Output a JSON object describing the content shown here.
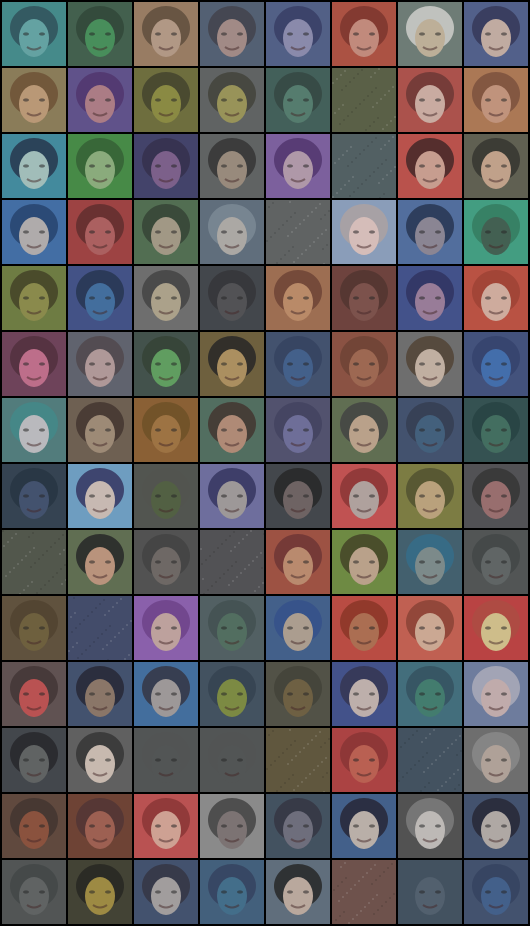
{
  "grid": {
    "rows": 14,
    "cols": 8,
    "tiles": [
      {
        "bg": "#3c8a8a",
        "face": "#5fa6a6",
        "hair": "#244a55",
        "noise": false
      },
      {
        "bg": "#3a5a46",
        "face": "#3f8f55",
        "hair": "#26402f",
        "noise": false
      },
      {
        "bg": "#9a7a5e",
        "face": "#b79a84",
        "hair": "#5a4634",
        "noise": false
      },
      {
        "bg": "#4c5a70",
        "face": "#a48a86",
        "hair": "#3a3a44",
        "noise": false
      },
      {
        "bg": "#4a5a86",
        "face": "#8a8ab0",
        "hair": "#2e3460",
        "noise": false
      },
      {
        "bg": "#b04a3a",
        "face": "#c98a7a",
        "hair": "#7a2a22",
        "noise": false
      },
      {
        "bg": "#6a7a74",
        "face": "#c4b49a",
        "hair": "#d8d8d4",
        "noise": false
      },
      {
        "bg": "#4a5a8a",
        "face": "#c8b0a4",
        "hair": "#2a2e52",
        "noise": false
      },
      {
        "bg": "#8a7a52",
        "face": "#c09a74",
        "hair": "#6a4a2a",
        "noise": false
      },
      {
        "bg": "#5a4a8a",
        "face": "#b07a84",
        "hair": "#4a2a6a",
        "noise": false
      },
      {
        "bg": "#6a6a34",
        "face": "#8a8a3a",
        "hair": "#3a3a22",
        "noise": false
      },
      {
        "bg": "#5a5e5e",
        "face": "#9a9452",
        "hair": "#3a3a30",
        "noise": false
      },
      {
        "bg": "#3a5a54",
        "face": "#4e7a6a",
        "hair": "#2a403a",
        "noise": false
      },
      {
        "bg": "#545a3e",
        "face": "#545a3e",
        "hair": "#545a3e",
        "noise": true
      },
      {
        "bg": "#b04a44",
        "face": "#d2b0a4",
        "hair": "#6a2e2a",
        "noise": false
      },
      {
        "bg": "#b0764e",
        "face": "#c8947a",
        "hair": "#7a4a34",
        "noise": false
      },
      {
        "bg": "#3a8aa0",
        "face": "#a4c4c0",
        "hair": "#1a2a44",
        "noise": false
      },
      {
        "bg": "#3e8a3e",
        "face": "#8ab07a",
        "hair": "#2a5a2a",
        "noise": false
      },
      {
        "bg": "#3a3a66",
        "face": "#7a5a8a",
        "hair": "#2a2444",
        "noise": false
      },
      {
        "bg": "#5a5e5e",
        "face": "#9a8a7a",
        "hair": "#2a2a2a",
        "noise": false
      },
      {
        "bg": "#7a5aa0",
        "face": "#b49aac",
        "hair": "#4a2a6a",
        "noise": false
      },
      {
        "bg": "#4a5a5e",
        "face": "#4a5a5e",
        "hair": "#4a5a5e",
        "noise": true
      },
      {
        "bg": "#c04a44",
        "face": "#d0a090",
        "hair": "#3a1a1a",
        "noise": false
      },
      {
        "bg": "#5a5a4a",
        "face": "#c8a48a",
        "hair": "#2a2a24",
        "noise": false
      },
      {
        "bg": "#3a6aa8",
        "face": "#b4b0b0",
        "hair": "#1a3a6a",
        "noise": false
      },
      {
        "bg": "#a03a3a",
        "face": "#b05a5a",
        "hair": "#5a2222",
        "noise": false
      },
      {
        "bg": "#4a6a4a",
        "face": "#a49a84",
        "hair": "#2a3a2a",
        "noise": false
      },
      {
        "bg": "#5a6a7a",
        "face": "#b0aca8",
        "hair": "#7a8a96",
        "noise": false
      },
      {
        "bg": "#5a5e5e",
        "face": "#5a5e5e",
        "hair": "#5a5e5e",
        "noise": true
      },
      {
        "bg": "#8aa0c0",
        "face": "#e0c4c0",
        "hair": "#b0a4a4",
        "noise": false
      },
      {
        "bg": "#4a6aa0",
        "face": "#8a8494",
        "hair": "#1a2a4a",
        "noise": false
      },
      {
        "bg": "#3aa080",
        "face": "#3a5a4a",
        "hair": "#2a7a5a",
        "noise": false
      },
      {
        "bg": "#6a7a3a",
        "face": "#8a8a44",
        "hair": "#3a3a1a",
        "noise": false
      },
      {
        "bg": "#3a4a86",
        "face": "#3a6aa0",
        "hair": "#1a2a4a",
        "noise": false
      },
      {
        "bg": "#6a6a6a",
        "face": "#b0a48a",
        "hair": "#3a3a3a",
        "noise": false
      },
      {
        "bg": "#3a3e44",
        "face": "#4a4a4e",
        "hair": "#2a2a2e",
        "noise": false
      },
      {
        "bg": "#a06a4a",
        "face": "#c08a64",
        "hair": "#6a3a2a",
        "noise": false
      },
      {
        "bg": "#6a3a34",
        "face": "#7a4a44",
        "hair": "#4a2a24",
        "noise": false
      },
      {
        "bg": "#3a4a8a",
        "face": "#9a7a9a",
        "hair": "#24285a",
        "noise": false
      },
      {
        "bg": "#c04a3a",
        "face": "#d8b0a0",
        "hair": "#a03a2a",
        "noise": false
      },
      {
        "bg": "#6a3a54",
        "face": "#c46a8a",
        "hair": "#4a2434",
        "noise": false
      },
      {
        "bg": "#5a5e6a",
        "face": "#b49a9a",
        "hair": "#4a4044",
        "noise": false
      },
      {
        "bg": "#3a4a44",
        "face": "#5aa05a",
        "hair": "#2a3a2a",
        "noise": false
      },
      {
        "bg": "#6a5a34",
        "face": "#b0905a",
        "hair": "#1a1a1a",
        "noise": false
      },
      {
        "bg": "#3a4a6a",
        "face": "#3a5a8a",
        "hair": "#2a3a5a",
        "noise": false
      },
      {
        "bg": "#8a4a3a",
        "face": "#a0644a",
        "hair": "#6a3a2a",
        "noise": false
      },
      {
        "bg": "#6a6a6a",
        "face": "#c8b4a4",
        "hair": "#4a3a2a",
        "noise": false
      },
      {
        "bg": "#3a4a7a",
        "face": "#3a6ab0",
        "hair": "#2a3a6a",
        "noise": false
      },
      {
        "bg": "#4a7a7a",
        "face": "#c0c0c4",
        "hair": "#3a8a8a",
        "noise": false
      },
      {
        "bg": "#6a5a4a",
        "face": "#a08a74",
        "hair": "#3a2a24",
        "noise": false
      },
      {
        "bg": "#8a5a2a",
        "face": "#a0703a",
        "hair": "#6a4a1a",
        "noise": false
      },
      {
        "bg": "#4a6a5a",
        "face": "#b48a74",
        "hair": "#3a2a24",
        "noise": false
      },
      {
        "bg": "#4a4a6a",
        "face": "#6a6a9a",
        "hair": "#3a3a5a",
        "noise": false
      },
      {
        "bg": "#5a6a4a",
        "face": "#c0a48a",
        "hair": "#3a3a3a",
        "noise": false
      },
      {
        "bg": "#3a4a6a",
        "face": "#3a5a7a",
        "hair": "#2a344a",
        "noise": false
      },
      {
        "bg": "#2a4a4a",
        "face": "#3a6a5a",
        "hair": "#1a3a3a",
        "noise": false
      },
      {
        "bg": "#2a3a4a",
        "face": "#3a4a6a",
        "hair": "#1a2a3a",
        "noise": false
      },
      {
        "bg": "#6aa0c8",
        "face": "#d0c0b8",
        "hair": "#2a2a5a",
        "noise": false
      },
      {
        "bg": "#4a4e48",
        "face": "#4a5a3a",
        "hair": "#4a4e48",
        "noise": false
      },
      {
        "bg": "#6a6aa0",
        "face": "#a09a9a",
        "hair": "#2a2a5a",
        "noise": false
      },
      {
        "bg": "#3a3e44",
        "face": "#6a5e5e",
        "hair": "#1a1a1a",
        "noise": false
      },
      {
        "bg": "#c84a4a",
        "face": "#b4a4a0",
        "hair": "#8a2a2a",
        "noise": false
      },
      {
        "bg": "#7a7a3a",
        "face": "#c0a47a",
        "hair": "#4a4a24",
        "noise": false
      },
      {
        "bg": "#4a4a4e",
        "face": "#9a6a6a",
        "hair": "#2a2a2a",
        "noise": false
      },
      {
        "bg": "#4a5044",
        "face": "#4a5044",
        "hair": "#4a5044",
        "noise": true
      },
      {
        "bg": "#5a6a4a",
        "face": "#c0947a",
        "hair": "#1a1a1a",
        "noise": false
      },
      {
        "bg": "#4a4a4a",
        "face": "#6a6460",
        "hair": "#3a3a3a",
        "noise": false
      },
      {
        "bg": "#4a4a4e",
        "face": "#4a4a4e",
        "hair": "#4a4a4e",
        "noise": true
      },
      {
        "bg": "#a04a3a",
        "face": "#c08a6a",
        "hair": "#6a2a2a",
        "noise": false
      },
      {
        "bg": "#6a8a3a",
        "face": "#c0a48a",
        "hair": "#3a3a1a",
        "noise": false
      },
      {
        "bg": "#3a5a6a",
        "face": "#7a8a8a",
        "hair": "#2a6a8a",
        "noise": false
      },
      {
        "bg": "#4a4e4e",
        "face": "#5a6060",
        "hair": "#3a3e3e",
        "noise": false
      },
      {
        "bg": "#5a4a34",
        "face": "#6a5a34",
        "hair": "#4a3a24",
        "noise": false
      },
      {
        "bg": "#3a4466",
        "face": "#3a4466",
        "hair": "#3a4466",
        "noise": true
      },
      {
        "bg": "#8a5ab0",
        "face": "#c4a4a0",
        "hair": "#6a3a8a",
        "noise": false
      },
      {
        "bg": "#4a5a5e",
        "face": "#4a6a5a",
        "hair": "#3a4a4a",
        "noise": false
      },
      {
        "bg": "#3a5a8a",
        "face": "#b0a090",
        "hair": "#2a4a8a",
        "noise": false
      },
      {
        "bg": "#c0443a",
        "face": "#b06a4a",
        "hair": "#8a2a1a",
        "noise": false
      },
      {
        "bg": "#c85a4a",
        "face": "#d4ac94",
        "hair": "#8a3a2a",
        "noise": false
      },
      {
        "bg": "#c03a3a",
        "face": "#d8c48a",
        "hair": "#b0443a",
        "noise": false
      },
      {
        "bg": "#5a4a4a",
        "face": "#c04a4a",
        "hair": "#3a2a2a",
        "noise": false
      },
      {
        "bg": "#3a4a6a",
        "face": "#8a7464",
        "hair": "#1a1a2a",
        "noise": false
      },
      {
        "bg": "#3a6aa0",
        "face": "#a09a9a",
        "hair": "#2a2a3a",
        "noise": false
      },
      {
        "bg": "#3a4a5a",
        "face": "#7a8a3a",
        "hair": "#2a3a4a",
        "noise": false
      },
      {
        "bg": "#4a4a3e",
        "face": "#6a5a3a",
        "hair": "#3a3a2e",
        "noise": false
      },
      {
        "bg": "#3a4a8a",
        "face": "#c4b4b0",
        "hair": "#2a2a4a",
        "noise": false
      },
      {
        "bg": "#3a6a7a",
        "face": "#3a7a6a",
        "hair": "#2a4a5a",
        "noise": false
      },
      {
        "bg": "#6a7aa0",
        "face": "#c8b0b0",
        "hair": "#b0b0c0",
        "noise": false
      },
      {
        "bg": "#3a3e44",
        "face": "#5a5e5e",
        "hair": "#1a1a1e",
        "noise": false
      },
      {
        "bg": "#5a5a5a",
        "face": "#d0c0b4",
        "hair": "#2a2a2a",
        "noise": false
      },
      {
        "bg": "#4a4e4e",
        "face": "#4a4e4e",
        "hair": "#4a4e4e",
        "noise": false
      },
      {
        "bg": "#4a4e4e",
        "face": "#4a4e4e",
        "hair": "#4a4e4e",
        "noise": false
      },
      {
        "bg": "#5a5034",
        "face": "#6a5a2a",
        "hair": "#4a4430",
        "noise": true
      },
      {
        "bg": "#b03a3a",
        "face": "#c05a4a",
        "hair": "#8a2a2a",
        "noise": false
      },
      {
        "bg": "#3a4a5a",
        "face": "#3a4a5a",
        "hair": "#3a4a5a",
        "noise": true
      },
      {
        "bg": "#6a6a6a",
        "face": "#b4a49a",
        "hair": "#8a8a8a",
        "noise": false
      },
      {
        "bg": "#5a4034",
        "face": "#8a4a34",
        "hair": "#3a2a24",
        "noise": false
      },
      {
        "bg": "#6a3a2a",
        "face": "#a05a4a",
        "hair": "#4a2a2a",
        "noise": false
      },
      {
        "bg": "#c04a4a",
        "face": "#d8a494",
        "hair": "#8a2a2a",
        "noise": false
      },
      {
        "bg": "#8a8a8a",
        "face": "#7a7070",
        "hair": "#3a3a3a",
        "noise": false
      },
      {
        "bg": "#3a4a5a",
        "face": "#6a6a7a",
        "hair": "#2a2a3a",
        "noise": false
      },
      {
        "bg": "#3a5a8a",
        "face": "#c0b4ac",
        "hair": "#1a1a2a",
        "noise": false
      },
      {
        "bg": "#4a4a4a",
        "face": "#c4c0bc",
        "hair": "#7a7a7a",
        "noise": false
      },
      {
        "bg": "#3a4a6a",
        "face": "#b4aca8",
        "hair": "#1a1a2a",
        "noise": false
      },
      {
        "bg": "#4a4e4e",
        "face": "#5a5e5e",
        "hair": "#3a3e3e",
        "noise": false
      },
      {
        "bg": "#3a3a2a",
        "face": "#a08a3a",
        "hair": "#1a1a14",
        "noise": false
      },
      {
        "bg": "#3a4a6a",
        "face": "#a4a0a0",
        "hair": "#2a2a3a",
        "noise": false
      },
      {
        "bg": "#3a5a7a",
        "face": "#3a6a8a",
        "hair": "#2a3a5a",
        "noise": false
      },
      {
        "bg": "#5a6a7a",
        "face": "#c0aca0",
        "hair": "#1a1a1a",
        "noise": false
      },
      {
        "bg": "#6a4a44",
        "face": "#6a4e48",
        "hair": "#5a4040",
        "noise": true
      },
      {
        "bg": "#3a4a5a",
        "face": "#4a5a6a",
        "hair": "#3a4a5a",
        "noise": false
      },
      {
        "bg": "#3a4a6a",
        "face": "#3a5a8a",
        "hair": "#2a3a5a",
        "noise": false
      }
    ]
  }
}
